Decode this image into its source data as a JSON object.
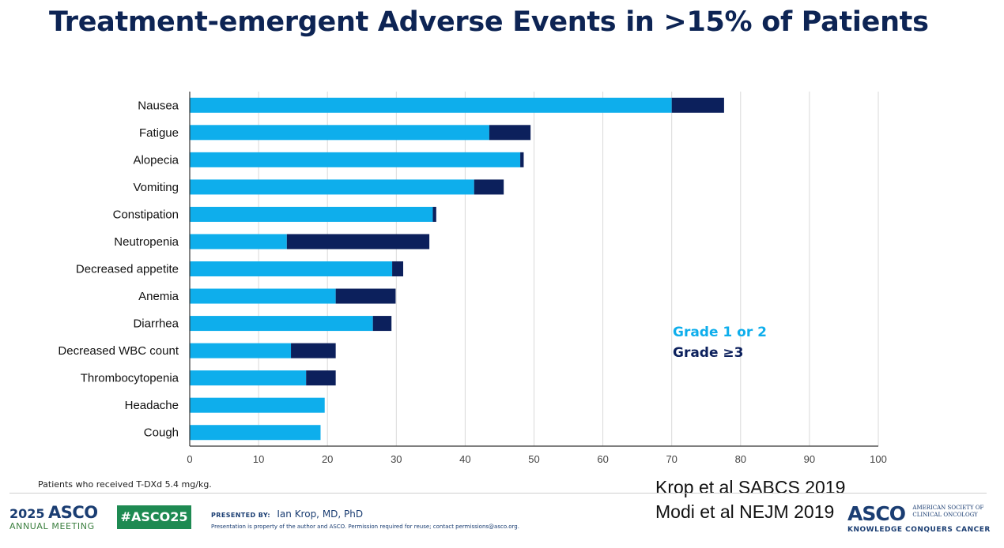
{
  "slide": {
    "title": "Treatment-emergent Adverse Events in >15% of Patients",
    "footnote": "Patients who received T-DXd 5.4 mg/kg.",
    "references": [
      "Krop et al SABCS 2019",
      "Modi et al NEJM 2019"
    ],
    "colors": {
      "title": "#0d2454",
      "grade_1_2": "#0eaeec",
      "grade_3_plus": "#0c205c"
    }
  },
  "chart_data": {
    "type": "bar",
    "orientation": "horizontal",
    "stacked": true,
    "categories": [
      "Nausea",
      "Fatigue",
      "Alopecia",
      "Vomiting",
      "Constipation",
      "Neutropenia",
      "Decreased appetite",
      "Anemia",
      "Diarrhea",
      "Decreased WBC count",
      "Thrombocytopenia",
      "Headache",
      "Cough"
    ],
    "series": [
      {
        "name": "Grade 1 or 2",
        "color": "#0eaeec",
        "values": [
          70.0,
          43.5,
          48.0,
          41.3,
          35.3,
          14.1,
          29.4,
          21.2,
          26.6,
          14.7,
          16.9,
          19.6,
          19.0
        ]
      },
      {
        "name": "Grade ≥3",
        "color": "#0c205c",
        "values": [
          7.6,
          6.0,
          0.5,
          4.3,
          0.5,
          20.7,
          1.6,
          8.7,
          2.7,
          6.5,
          4.3,
          0.0,
          0.0
        ]
      }
    ],
    "x_ticks": [
      "0",
      "10",
      "20",
      "30",
      "40",
      "50",
      "60",
      "70",
      "80",
      "90",
      "100"
    ],
    "xlim": [
      0,
      100
    ],
    "grid": "vertical",
    "legend_position": "right"
  },
  "footer": {
    "meeting_year": "2025",
    "meeting_name": "ASCO",
    "meeting_subtitle": "ANNUAL MEETING",
    "hashtag": "#ASCO25",
    "presented_by_label": "PRESENTED BY:",
    "presenter": "Ian Krop, MD, PhD",
    "disclaimer": "Presentation is property of the author and ASCO. Permission required for reuse; contact permissions@asco.org.",
    "org_mark": "ASCO",
    "org_name_line1": "AMERICAN SOCIETY OF",
    "org_name_line2": "CLINICAL ONCOLOGY",
    "org_tagline": "KNOWLEDGE CONQUERS CANCER"
  }
}
